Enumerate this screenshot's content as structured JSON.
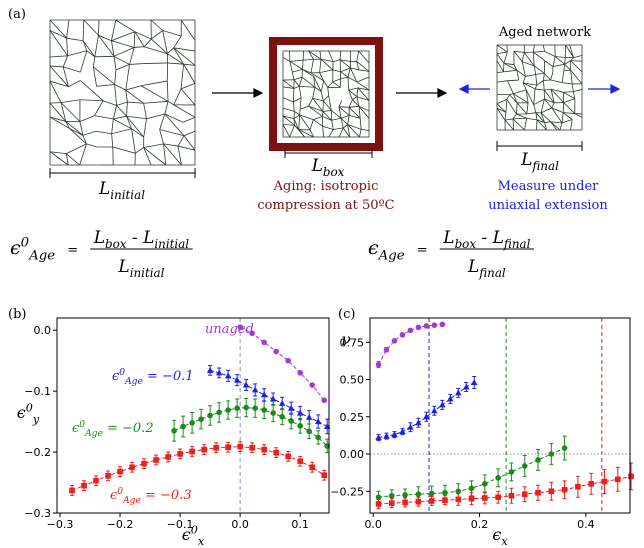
{
  "panel_labels": [
    "(a)",
    "(b)",
    "(c)"
  ],
  "diagram": {
    "initial_label": [
      {
        "text": "L"
      },
      {
        "text": "initial",
        "pos": "sub"
      }
    ],
    "box_label": [
      {
        "text": "L"
      },
      {
        "text": "box",
        "pos": "sub"
      }
    ],
    "aging_caption": [
      "Aging: isotropic",
      "compression at 50ºC"
    ],
    "aged_title": "Aged network",
    "final_label": [
      {
        "text": "L"
      },
      {
        "text": "final",
        "pos": "sub"
      }
    ],
    "measure_caption": [
      "Measure under",
      "uniaxial extension"
    ],
    "equations": [
      {
        "lhs": [
          {
            "text": "ϵ"
          },
          {
            "text": "0",
            "pos": "sup"
          },
          {
            "text": "Age",
            "pos": "sub"
          }
        ],
        "equals": "=",
        "numerator": [
          {
            "text": "L"
          },
          {
            "text": "box",
            "pos": "sub"
          },
          {
            "text": " - "
          },
          {
            "text": "L"
          },
          {
            "text": "initial",
            "pos": "sub"
          }
        ],
        "denominator": [
          {
            "text": "L"
          },
          {
            "text": "initial",
            "pos": "sub"
          }
        ]
      },
      {
        "lhs": [
          {
            "text": "ϵ"
          },
          {
            "text": "Age",
            "pos": "sub"
          }
        ],
        "equals": "=",
        "numerator": [
          {
            "text": "L"
          },
          {
            "text": "box",
            "pos": "sub"
          },
          {
            "text": " - "
          },
          {
            "text": "L"
          },
          {
            "text": "final",
            "pos": "sub"
          }
        ],
        "denominator": [
          {
            "text": "L"
          },
          {
            "text": "final",
            "pos": "sub"
          }
        ]
      }
    ]
  },
  "chart_data": [
    {
      "type": "line",
      "line_style": "dashed",
      "xlabel": [
        {
          "text": "ϵ"
        },
        {
          "text": "0",
          "pos": "sup"
        },
        {
          "text": "x",
          "pos": "sub"
        }
      ],
      "ylabel": [
        {
          "text": "ϵ"
        },
        {
          "text": "0",
          "pos": "sup"
        },
        {
          "text": "y",
          "pos": "sub"
        }
      ],
      "xlim": [
        -0.305,
        0.148
      ],
      "ylim": [
        -0.3,
        0.02
      ],
      "xticks": [
        {
          "value": -0.3,
          "label": "−0.3"
        },
        {
          "value": -0.2,
          "label": "−0.2"
        },
        {
          "value": -0.1,
          "label": "−0.1"
        },
        {
          "value": 0,
          "label": "0.0"
        },
        0.1
      ],
      "yticks": [
        {
          "value": -0.3,
          "label": "−0.3"
        },
        {
          "value": -0.2,
          "label": "−0.2"
        },
        {
          "value": -0.1,
          "label": "−0.1"
        },
        {
          "value": 0,
          "label": "0.0"
        }
      ],
      "vlines": [
        {
          "value": 0,
          "color": "#8a94b8"
        }
      ],
      "series": [
        {
          "color": "#a23bd4",
          "marker": "circle",
          "x": [
            0,
            0.02,
            0.04,
            0.06,
            0.08,
            0.1,
            0.12,
            0.14
          ],
          "values": [
            0.005,
            -0.005,
            -0.02,
            -0.035,
            -0.05,
            -0.07,
            -0.09,
            -0.115
          ]
        },
        {
          "color": "#2020e0",
          "marker": "triangle",
          "x": [
            -0.05,
            -0.035,
            -0.02,
            -0.005,
            0.01,
            0.025,
            0.04,
            0.055,
            0.07,
            0.085,
            0.1,
            0.115,
            0.13,
            0.145
          ],
          "values": [
            -0.066,
            -0.07,
            -0.075,
            -0.082,
            -0.09,
            -0.098,
            -0.106,
            -0.113,
            -0.12,
            -0.128,
            -0.136,
            -0.143,
            -0.15,
            -0.158
          ],
          "errors": [
            0.008,
            0.008,
            0.009,
            0.009,
            0.009,
            0.01,
            0.01,
            0.01,
            0.01,
            0.01,
            0.011,
            0.011,
            0.011,
            0.012
          ]
        },
        {
          "color": "#1a8a1a",
          "marker": "circle",
          "x": [
            -0.11,
            -0.095,
            -0.08,
            -0.065,
            -0.05,
            -0.035,
            -0.02,
            -0.005,
            0.01,
            0.025,
            0.04,
            0.055,
            0.07,
            0.085,
            0.1,
            0.115,
            0.13,
            0.145
          ],
          "values": [
            -0.165,
            -0.158,
            -0.152,
            -0.146,
            -0.14,
            -0.135,
            -0.131,
            -0.128,
            -0.127,
            -0.128,
            -0.131,
            -0.136,
            -0.142,
            -0.149,
            -0.157,
            -0.166,
            -0.176,
            -0.19
          ],
          "errors": [
            0.017,
            0.017,
            0.017,
            0.016,
            0.016,
            0.016,
            0.015,
            0.015,
            0.015,
            0.015,
            0.014,
            0.014,
            0.013,
            0.013,
            0.012,
            0.012,
            0.011,
            0.011
          ]
        },
        {
          "color": "#e8201e",
          "marker": "square",
          "x": [
            -0.28,
            -0.26,
            -0.24,
            -0.22,
            -0.2,
            -0.18,
            -0.16,
            -0.14,
            -0.12,
            -0.1,
            -0.08,
            -0.06,
            -0.04,
            -0.02,
            0,
            0.02,
            0.04,
            0.06,
            0.08,
            0.1,
            0.12,
            0.14
          ],
          "values": [
            -0.263,
            -0.255,
            -0.247,
            -0.239,
            -0.232,
            -0.225,
            -0.219,
            -0.213,
            -0.208,
            -0.203,
            -0.199,
            -0.196,
            -0.193,
            -0.192,
            -0.191,
            -0.193,
            -0.196,
            -0.201,
            -0.207,
            -0.215,
            -0.225,
            -0.238
          ],
          "errors": [
            0.008,
            0.008,
            0.008,
            0.008,
            0.008,
            0.008,
            0.008,
            0.008,
            0.008,
            0.008,
            0.008,
            0.008,
            0.008,
            0.008,
            0.008,
            0.008,
            0.008,
            0.008,
            0.008,
            0.008,
            0.008,
            0.008
          ]
        }
      ],
      "annotations": [
        [
          {
            "text": "unaged"
          }
        ],
        [
          {
            "text": "ϵ"
          },
          {
            "text": "0",
            "pos": "sup"
          },
          {
            "text": "Age",
            "pos": "sub"
          },
          {
            "text": " = −0.1"
          }
        ],
        [
          {
            "text": "ϵ"
          },
          {
            "text": "0",
            "pos": "sup"
          },
          {
            "text": "Age",
            "pos": "sub"
          },
          {
            "text": " = −0.2"
          }
        ],
        [
          {
            "text": "ϵ"
          },
          {
            "text": "0",
            "pos": "sup"
          },
          {
            "text": "Age",
            "pos": "sub"
          },
          {
            "text": " = −0.3"
          }
        ]
      ]
    },
    {
      "type": "line",
      "line_style": "dashed",
      "xlabel": [
        {
          "text": "ϵ"
        },
        {
          "text": "x",
          "pos": "sub"
        }
      ],
      "ylabel": [
        {
          "text": "ν"
        }
      ],
      "xlim": [
        -0.006,
        0.483
      ],
      "ylim": [
        -0.396,
        0.913
      ],
      "xticks": [
        {
          "value": 0,
          "label": "0.0"
        },
        0.2,
        0.4
      ],
      "yticks": [
        {
          "value": -0.25,
          "label": "−0.25"
        },
        {
          "value": 0,
          "label": "0.00"
        },
        0.25,
        {
          "value": 0.5,
          "label": "0.50"
        },
        0.75
      ],
      "hlines": [
        {
          "value": 0,
          "color": "#888888"
        }
      ],
      "vlines": [
        {
          "value": 0.105,
          "color": "#2020e0"
        },
        {
          "value": 0.25,
          "color": "#1a8a1a"
        },
        {
          "value": 0.43,
          "color": "#e8201e"
        }
      ],
      "series": [
        {
          "color": "#a23bd4",
          "marker": "circle",
          "x": [
            0.01,
            0.025,
            0.04,
            0.055,
            0.07,
            0.085,
            0.1,
            0.115,
            0.13
          ],
          "values": [
            0.6,
            0.7,
            0.76,
            0.8,
            0.83,
            0.85,
            0.86,
            0.865,
            0.87
          ],
          "errors": [
            0.02,
            0.015,
            0.01,
            0.01,
            0.01,
            0.01,
            0.01,
            0.01,
            0.01
          ]
        },
        {
          "color": "#2020e0",
          "marker": "triangle",
          "x": [
            0.01,
            0.025,
            0.04,
            0.055,
            0.07,
            0.085,
            0.1,
            0.115,
            0.13,
            0.145,
            0.16,
            0.175,
            0.19
          ],
          "values": [
            0.11,
            0.12,
            0.13,
            0.15,
            0.18,
            0.21,
            0.25,
            0.29,
            0.33,
            0.37,
            0.41,
            0.45,
            0.48
          ],
          "errors": [
            0.02,
            0.02,
            0.02,
            0.02,
            0.03,
            0.03,
            0.03,
            0.03,
            0.03,
            0.03,
            0.03,
            0.03,
            0.04
          ]
        },
        {
          "color": "#1a8a1a",
          "marker": "circle",
          "x": [
            0.01,
            0.035,
            0.06,
            0.085,
            0.11,
            0.135,
            0.16,
            0.185,
            0.21,
            0.235,
            0.26,
            0.285,
            0.31,
            0.335,
            0.36
          ],
          "values": [
            -0.29,
            -0.28,
            -0.275,
            -0.27,
            -0.265,
            -0.26,
            -0.25,
            -0.23,
            -0.2,
            -0.16,
            -0.12,
            -0.08,
            -0.04,
            0.0,
            0.04
          ],
          "errors": [
            0.04,
            0.04,
            0.04,
            0.05,
            0.05,
            0.05,
            0.05,
            0.05,
            0.06,
            0.06,
            0.06,
            0.07,
            0.07,
            0.07,
            0.08
          ]
        },
        {
          "color": "#e8201e",
          "marker": "square",
          "x": [
            0.01,
            0.035,
            0.06,
            0.085,
            0.11,
            0.135,
            0.16,
            0.185,
            0.21,
            0.235,
            0.26,
            0.285,
            0.31,
            0.335,
            0.36,
            0.385,
            0.41,
            0.435,
            0.46,
            0.485
          ],
          "values": [
            -0.335,
            -0.33,
            -0.325,
            -0.32,
            -0.315,
            -0.31,
            -0.305,
            -0.3,
            -0.295,
            -0.29,
            -0.28,
            -0.27,
            -0.26,
            -0.25,
            -0.24,
            -0.22,
            -0.2,
            -0.185,
            -0.17,
            -0.15
          ],
          "errors": [
            0.03,
            0.03,
            0.03,
            0.03,
            0.03,
            0.03,
            0.04,
            0.04,
            0.04,
            0.04,
            0.05,
            0.05,
            0.05,
            0.06,
            0.06,
            0.07,
            0.07,
            0.08,
            0.08,
            0.09
          ]
        }
      ]
    }
  ]
}
